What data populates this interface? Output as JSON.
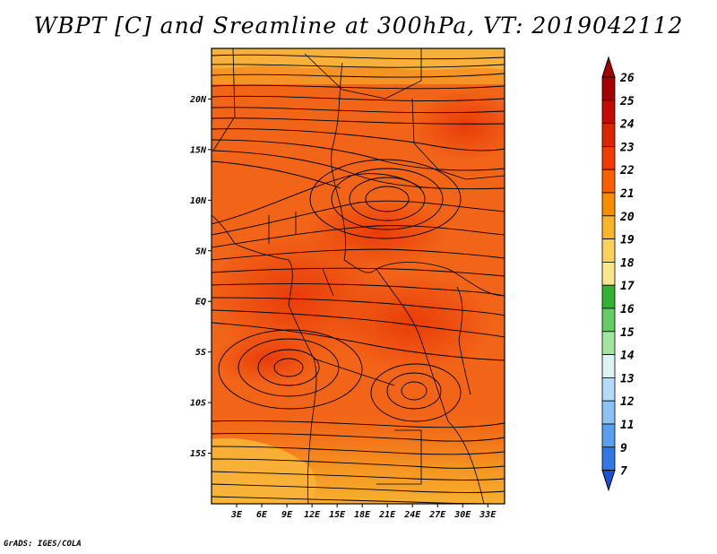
{
  "title": "WBPT [C] and Sreamline at 300hPa, VT: 2019042112",
  "credit": "GrADS: IGES/COLA",
  "map": {
    "lon_range": [
      0,
      35
    ],
    "lat_range": [
      -20,
      25
    ],
    "lat_ticks": [
      {
        "value": 20,
        "label": "20N"
      },
      {
        "value": 15,
        "label": "15N"
      },
      {
        "value": 10,
        "label": "10N"
      },
      {
        "value": 5,
        "label": "5N"
      },
      {
        "value": 0,
        "label": "EQ"
      },
      {
        "value": -5,
        "label": "5S"
      },
      {
        "value": -10,
        "label": "10S"
      },
      {
        "value": -15,
        "label": "15S"
      }
    ],
    "lon_ticks": [
      {
        "value": 3,
        "label": "3E"
      },
      {
        "value": 6,
        "label": "6E"
      },
      {
        "value": 9,
        "label": "9E"
      },
      {
        "value": 12,
        "label": "12E"
      },
      {
        "value": 15,
        "label": "15E"
      },
      {
        "value": 18,
        "label": "18E"
      },
      {
        "value": 21,
        "label": "21E"
      },
      {
        "value": 24,
        "label": "24E"
      },
      {
        "value": 27,
        "label": "27E"
      },
      {
        "value": 30,
        "label": "30E"
      },
      {
        "value": 33,
        "label": "33E"
      }
    ]
  },
  "colorbar": {
    "levels": [
      "26",
      "25",
      "24",
      "23",
      "22",
      "21",
      "20",
      "19",
      "18",
      "17",
      "16",
      "15",
      "14",
      "13",
      "12",
      "11",
      "9",
      "7"
    ],
    "colors": [
      "#a50000",
      "#c30b00",
      "#dc2400",
      "#f03c00",
      "#fa6000",
      "#fa8c00",
      "#fab428",
      "#fad25a",
      "#fae68c",
      "#32b432",
      "#64cd64",
      "#a0e6a0",
      "#dcf5f0",
      "#b4dcfa",
      "#8cc3f5",
      "#5aa0f0",
      "#3278e6",
      "#1e50d2"
    ]
  }
}
